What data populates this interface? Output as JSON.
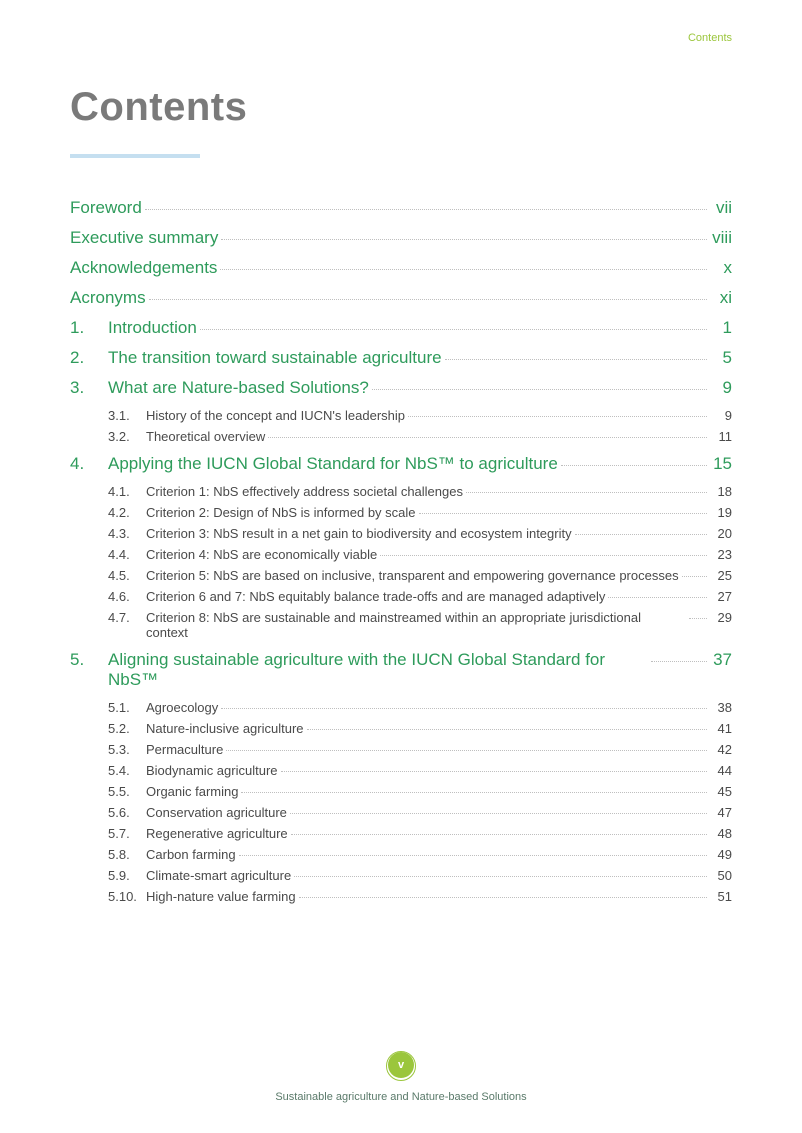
{
  "header_label": "Contents",
  "title": "Contents",
  "colors": {
    "title": "#7a7a7a",
    "underline": "#c5dff0",
    "level0": "#2e9b5b",
    "level1": "#4a4a4a",
    "accent": "#9bc63c",
    "dots": "#bfbfbf",
    "footer_text": "#5a7a6a"
  },
  "toc": [
    {
      "level": 0,
      "num": "",
      "label": "Foreword",
      "page": "vii"
    },
    {
      "level": 0,
      "num": "",
      "label": "Executive summary",
      "page": "viii"
    },
    {
      "level": 0,
      "num": "",
      "label": "Acknowledgements",
      "page": "x"
    },
    {
      "level": 0,
      "num": "",
      "label": "Acronyms",
      "page": "xi"
    },
    {
      "level": 0,
      "num": "1.",
      "label": "Introduction",
      "page": "1"
    },
    {
      "level": 0,
      "num": "2.",
      "label": "The transition toward sustainable agriculture",
      "page": "5"
    },
    {
      "level": 0,
      "num": "3.",
      "label": "What are Nature-based Solutions?",
      "page": "9"
    },
    {
      "level": 1,
      "num": "3.1.",
      "label": "History of the concept and IUCN's leadership",
      "page": "9"
    },
    {
      "level": 1,
      "num": "3.2.",
      "label": "Theoretical overview",
      "page": "11"
    },
    {
      "level": 0,
      "num": "4.",
      "label": "Applying the IUCN Global Standard for NbS™ to agriculture",
      "page": "15"
    },
    {
      "level": 1,
      "num": "4.1.",
      "label": "Criterion 1: NbS effectively address societal challenges",
      "page": "18"
    },
    {
      "level": 1,
      "num": "4.2.",
      "label": "Criterion 2: Design of NbS is informed by scale",
      "page": "19"
    },
    {
      "level": 1,
      "num": "4.3.",
      "label": "Criterion 3: NbS result in a net gain to biodiversity and ecosystem integrity",
      "page": "20"
    },
    {
      "level": 1,
      "num": "4.4.",
      "label": "Criterion 4: NbS are economically viable",
      "page": "23"
    },
    {
      "level": 1,
      "num": "4.5.",
      "label": "Criterion 5: NbS are based on inclusive, transparent and empowering governance processes",
      "page": "25"
    },
    {
      "level": 1,
      "num": "4.6.",
      "label": "Criterion 6 and 7: NbS equitably balance trade-offs and are managed adaptively",
      "page": "27"
    },
    {
      "level": 1,
      "num": "4.7.",
      "label": "Criterion 8: NbS are sustainable and mainstreamed within an appropriate jurisdictional context",
      "page": "29"
    },
    {
      "level": 0,
      "num": "5.",
      "label": "Aligning sustainable agriculture with the IUCN Global Standard for NbS™",
      "page": "37"
    },
    {
      "level": 1,
      "num": "5.1.",
      "label": "Agroecology",
      "page": "38"
    },
    {
      "level": 1,
      "num": "5.2.",
      "label": "Nature-inclusive agriculture",
      "page": "41"
    },
    {
      "level": 1,
      "num": "5.3.",
      "label": "Permaculture",
      "page": "42"
    },
    {
      "level": 1,
      "num": "5.4.",
      "label": "Biodynamic agriculture",
      "page": "44"
    },
    {
      "level": 1,
      "num": "5.5.",
      "label": "Organic farming",
      "page": "45"
    },
    {
      "level": 1,
      "num": "5.6.",
      "label": "Conservation agriculture",
      "page": "47"
    },
    {
      "level": 1,
      "num": "5.7.",
      "label": "Regenerative agriculture",
      "page": "48"
    },
    {
      "level": 1,
      "num": "5.8.",
      "label": "Carbon farming",
      "page": "49"
    },
    {
      "level": 1,
      "num": "5.9.",
      "label": "Climate-smart agriculture",
      "page": "50"
    },
    {
      "level": 1,
      "num": "5.10.",
      "label": "High-nature value farming",
      "page": "51"
    }
  ],
  "footer": {
    "badge": "v",
    "text": "Sustainable agriculture and Nature-based Solutions"
  }
}
